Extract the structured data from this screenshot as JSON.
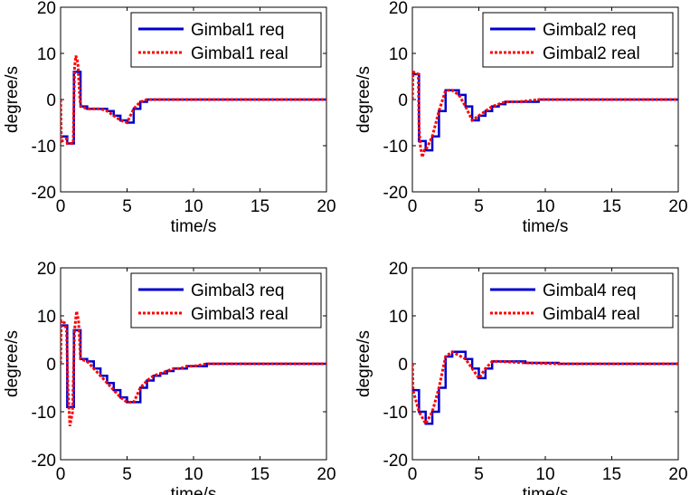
{
  "chart_data": [
    {
      "type": "line",
      "xlabel": "time/s",
      "ylabel": "degree/s",
      "xlim": [
        0,
        20
      ],
      "ylim": [
        -20,
        20
      ],
      "xticks": [
        "0",
        "5",
        "10",
        "15",
        "20"
      ],
      "yticks": [
        "20",
        "10",
        "0",
        "-10",
        "-20"
      ],
      "grid": false,
      "legend_position": "top-right",
      "series": [
        {
          "name": "Gimbal1 req",
          "color": "#0000cc",
          "style": "solid",
          "step": true,
          "x": [
            0,
            0.5,
            1.0,
            1.5,
            2.0,
            2.5,
            3.0,
            3.5,
            4.0,
            4.5,
            5.0,
            5.5,
            6.0,
            6.5,
            7.0,
            20
          ],
          "y": [
            -8,
            -9.5,
            6,
            -1.5,
            -2,
            -2,
            -2,
            -2.5,
            -3.5,
            -4.5,
            -5,
            -2,
            -0.5,
            0,
            0,
            0
          ]
        },
        {
          "name": "Gimbal1 real",
          "color": "#ff0000",
          "style": "dotted",
          "step": false,
          "x": [
            0,
            0.05,
            0.1,
            0.45,
            0.5,
            0.95,
            1.05,
            1.15,
            1.3,
            1.45,
            1.55,
            2.0,
            2.5,
            3.0,
            3.5,
            4.0,
            4.5,
            5.0,
            5.5,
            6.0,
            6.5,
            7.0,
            20
          ],
          "y": [
            0,
            -8,
            -9,
            -8.5,
            -9.5,
            -9.5,
            7,
            9.5,
            8,
            0,
            -1.5,
            -2,
            -2,
            -2,
            -2.5,
            -3.5,
            -4.5,
            -5,
            -2,
            -0.5,
            0,
            0,
            0
          ]
        }
      ]
    },
    {
      "type": "line",
      "xlabel": "time/s",
      "ylabel": "degree/s",
      "xlim": [
        0,
        20
      ],
      "ylim": [
        -20,
        20
      ],
      "xticks": [
        "0",
        "5",
        "10",
        "15",
        "20"
      ],
      "yticks": [
        "20",
        "10",
        "0",
        "-10",
        "-20"
      ],
      "grid": false,
      "legend_position": "top-right",
      "series": [
        {
          "name": "Gimbal2 req",
          "color": "#0000cc",
          "style": "solid",
          "step": true,
          "x": [
            0,
            0.5,
            1.0,
            1.5,
            2.0,
            2.5,
            3.0,
            3.5,
            4.0,
            4.5,
            5.0,
            5.5,
            6.0,
            6.5,
            7.0,
            8.0,
            9.5,
            20
          ],
          "y": [
            5.5,
            -9,
            -11,
            -8,
            -2.5,
            2,
            2,
            1,
            -1.5,
            -4.5,
            -3.5,
            -2.5,
            -1.5,
            -1,
            -0.5,
            -0.5,
            0,
            0
          ]
        },
        {
          "name": "Gimbal2 real",
          "color": "#ff0000",
          "style": "dotted",
          "step": false,
          "x": [
            0,
            0.05,
            0.45,
            0.5,
            0.6,
            0.75,
            0.9,
            1.0,
            1.5,
            2.0,
            2.5,
            3.0,
            3.5,
            4.0,
            4.5,
            5.0,
            5.5,
            6.0,
            6.5,
            7.0,
            8.0,
            9.5,
            20
          ],
          "y": [
            0,
            6,
            5.5,
            -6,
            -10,
            -12.5,
            -11,
            -11,
            -8,
            -2.5,
            2,
            2,
            1,
            -1.5,
            -4.5,
            -3.5,
            -2.5,
            -1.5,
            -1,
            -0.5,
            -0.5,
            0,
            0
          ]
        }
      ]
    },
    {
      "type": "line",
      "xlabel": "time/s",
      "ylabel": "degree/s",
      "xlim": [
        0,
        20
      ],
      "ylim": [
        -20,
        20
      ],
      "xticks": [
        "0",
        "5",
        "10",
        "15",
        "20"
      ],
      "yticks": [
        "20",
        "10",
        "0",
        "-10",
        "-20"
      ],
      "grid": false,
      "legend_position": "top-right",
      "series": [
        {
          "name": "Gimbal3 req",
          "color": "#0000cc",
          "style": "solid",
          "step": true,
          "x": [
            0,
            0.5,
            1.0,
            1.5,
            2.0,
            2.5,
            3.0,
            3.5,
            4.0,
            4.5,
            5.0,
            5.5,
            6.0,
            6.5,
            7.0,
            7.5,
            8.0,
            8.5,
            9.0,
            9.5,
            10.0,
            11.0,
            20
          ],
          "y": [
            8,
            -9,
            7,
            1,
            0.5,
            -1,
            -2.5,
            -4,
            -5.5,
            -7,
            -8,
            -8,
            -5,
            -3.5,
            -2.5,
            -2,
            -1.5,
            -1,
            -1,
            -0.5,
            -0.5,
            0,
            0
          ]
        },
        {
          "name": "Gimbal3 real",
          "color": "#ff0000",
          "style": "dotted",
          "step": false,
          "x": [
            0,
            0.05,
            0.3,
            0.45,
            0.55,
            0.7,
            0.9,
            1.05,
            1.2,
            1.35,
            1.5,
            2.0,
            2.5,
            3.0,
            3.5,
            4.0,
            4.5,
            5.0,
            5.5,
            6.0,
            6.5,
            7.0,
            7.5,
            8.0,
            8.5,
            9.0,
            9.5,
            10.0,
            11.0,
            20
          ],
          "y": [
            0,
            9,
            8.5,
            7,
            -5,
            -13,
            -10,
            7,
            11,
            9,
            1,
            0.5,
            -1,
            -2.5,
            -4,
            -5.5,
            -7,
            -8,
            -8,
            -5,
            -3.5,
            -2.5,
            -2,
            -1.5,
            -1,
            -1,
            -0.5,
            -0.5,
            0,
            0
          ]
        }
      ]
    },
    {
      "type": "line",
      "xlabel": "time/s",
      "ylabel": "degree/s",
      "xlim": [
        0,
        20
      ],
      "ylim": [
        -20,
        20
      ],
      "xticks": [
        "0",
        "5",
        "10",
        "15",
        "20"
      ],
      "yticks": [
        "20",
        "10",
        "0",
        "-10",
        "-20"
      ],
      "grid": false,
      "legend_position": "top-right",
      "series": [
        {
          "name": "Gimbal4 req",
          "color": "#0000cc",
          "style": "solid",
          "step": true,
          "x": [
            0,
            0.5,
            1.0,
            1.5,
            2.0,
            2.5,
            3.0,
            4.0,
            4.5,
            5.0,
            5.5,
            6.0,
            6.5,
            8.5,
            11.0,
            20
          ],
          "y": [
            -5.5,
            -10,
            -12.5,
            -10,
            -5,
            1.5,
            2.5,
            1,
            -1,
            -3,
            -1,
            0.5,
            0.5,
            0.2,
            0,
            0
          ]
        },
        {
          "name": "Gimbal4 real",
          "color": "#ff0000",
          "style": "dotted",
          "step": false,
          "x": [
            0,
            0.05,
            0.5,
            1.0,
            1.5,
            2.0,
            2.5,
            3.0,
            4.0,
            4.5,
            5.0,
            5.5,
            6.0,
            6.5,
            8.5,
            11.0,
            20
          ],
          "y": [
            0,
            -5.5,
            -10,
            -12.5,
            -10,
            -5,
            1.5,
            2.5,
            1,
            -1,
            -3,
            -1,
            0.5,
            0.5,
            0.2,
            0,
            0
          ]
        }
      ]
    }
  ]
}
